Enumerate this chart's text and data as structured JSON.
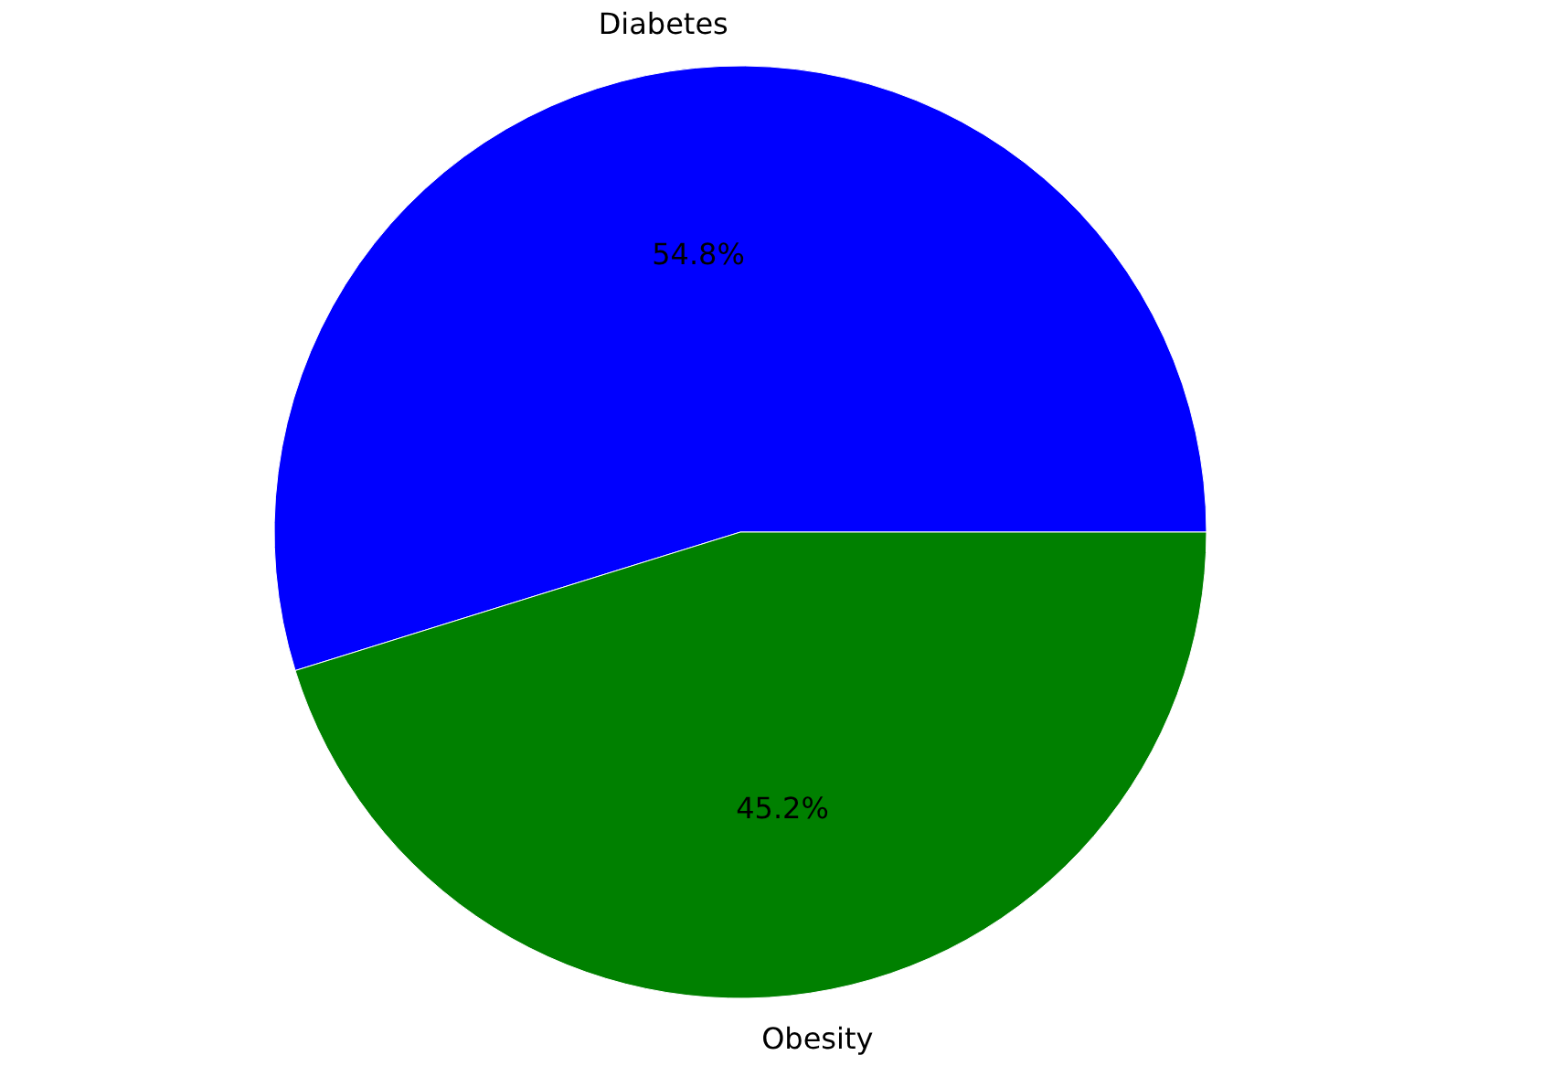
{
  "chart_data": {
    "type": "pie",
    "categories": [
      "Diabetes",
      "Obesity"
    ],
    "values": [
      54.8,
      45.2
    ],
    "colors": [
      "#0000ff",
      "#008000"
    ],
    "value_labels": [
      "54.8%",
      "45.2%"
    ],
    "legend": false
  }
}
